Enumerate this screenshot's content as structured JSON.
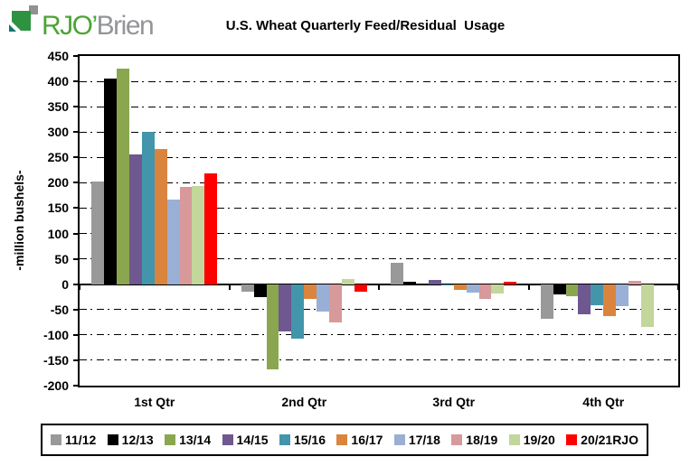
{
  "logo": {
    "brand_green": "RJO’",
    "brand_gray": "Brien"
  },
  "chart_data": {
    "type": "bar",
    "title": "U.S. Wheat Quarterly Feed/Residual  Usage",
    "xlabel": "",
    "ylabel": "-million bushels-",
    "ylim": [
      -200,
      450
    ],
    "ytick_step": 50,
    "yticks": [
      450,
      400,
      350,
      300,
      250,
      200,
      150,
      100,
      50,
      0,
      -50,
      -100,
      -150,
      -200
    ],
    "grid": "horizontal dash-dot",
    "legend_position": "bottom",
    "categories": [
      "1st Qtr",
      "2nd Qtr",
      "3rd Qtr",
      "4th Qtr"
    ],
    "series": [
      {
        "name": "11/12",
        "color": "#999999",
        "values": [
          202,
          -15,
          43,
          -69
        ]
      },
      {
        "name": "12/13",
        "color": "#000000",
        "values": [
          405,
          -25,
          5,
          -21
        ]
      },
      {
        "name": "13/14",
        "color": "#8AA750",
        "values": [
          425,
          -168,
          0,
          -24
        ]
      },
      {
        "name": "14/15",
        "color": "#6F578F",
        "values": [
          256,
          -93,
          9,
          -59
        ]
      },
      {
        "name": "15/16",
        "color": "#4395AB",
        "values": [
          300,
          -108,
          -3,
          -42
        ]
      },
      {
        "name": "16/17",
        "color": "#DB843D",
        "values": [
          267,
          -29,
          -12,
          -62
        ]
      },
      {
        "name": "17/18",
        "color": "#9AAFD6",
        "values": [
          167,
          -54,
          -16,
          -43
        ]
      },
      {
        "name": "18/19",
        "color": "#D79999",
        "values": [
          191,
          -75,
          -29,
          6
        ]
      },
      {
        "name": "19/20",
        "color": "#C3D69B",
        "values": [
          194,
          11,
          -19,
          -85
        ]
      },
      {
        "name": "20/21RJO",
        "color": "#FF0000",
        "values": [
          218,
          -14,
          5,
          0
        ]
      }
    ]
  },
  "colors": {
    "background": "#FFFFFF",
    "axis": "#000000",
    "logo_text_green": "#4CA436",
    "logo_text_gray": "#939598",
    "logo_icon_green": "#2E9341",
    "logo_icon_teal": "#12766E",
    "logo_icon_gray": "#8F9294"
  }
}
